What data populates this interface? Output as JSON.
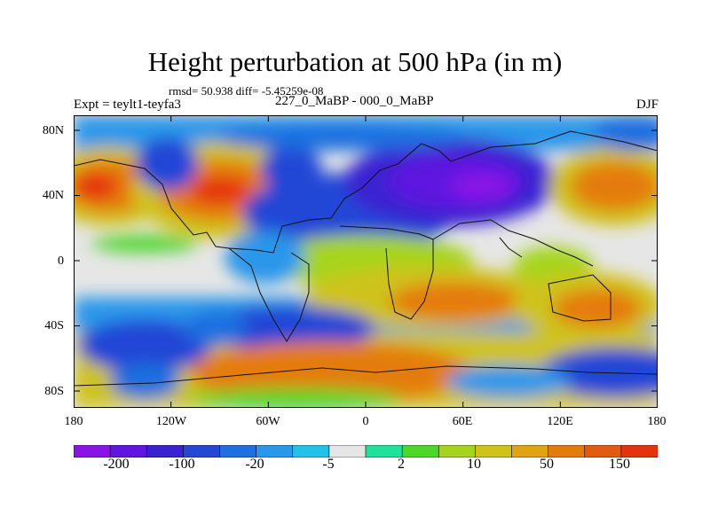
{
  "title": "Height perturbation at 500 hPa (in m)",
  "stats": "rmsd= 50.938 diff= -5.45259e-08",
  "left_label": "Expt = teylt1-teyfa3",
  "center_label": "227_0_MaBP - 000_0_MaBP",
  "right_label": "DJF",
  "axes": {
    "lat_ticks": [
      "80N",
      "40N",
      "0",
      "40S",
      "80S"
    ],
    "lon_ticks": [
      "180",
      "120W",
      "60W",
      "0",
      "60E",
      "120E",
      "180"
    ]
  },
  "colorbar": {
    "colors": [
      "#8a14e6",
      "#5f16e0",
      "#3a21d2",
      "#2447d6",
      "#1f6fe0",
      "#2b97ea",
      "#22c2e8",
      "#e6e6e6",
      "#1ee29b",
      "#4ed62a",
      "#a6d41c",
      "#cfc21a",
      "#e1a312",
      "#e47c0d",
      "#e35a12",
      "#e5330f"
    ],
    "labels": [
      "-200",
      "-100",
      "-20",
      "-5",
      "2",
      "10",
      "50",
      "150"
    ]
  }
}
